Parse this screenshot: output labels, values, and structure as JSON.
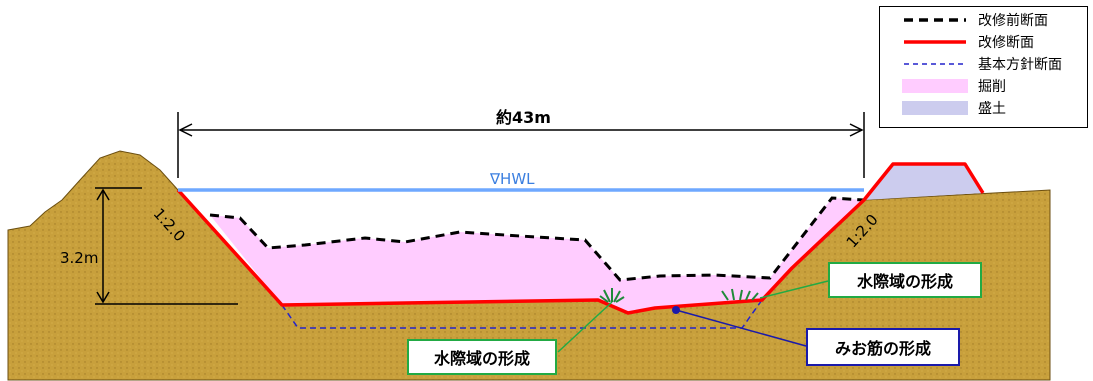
{
  "legend": {
    "items": [
      {
        "label": "改修前断面",
        "kind": "dash-black",
        "color": "#000000"
      },
      {
        "label": "改修断面",
        "kind": "solid-red",
        "color": "#ff0000"
      },
      {
        "label": "基本方針断面",
        "kind": "dash-blue",
        "color": "#0000cc"
      },
      {
        "label": "掘削",
        "kind": "fill",
        "color": "#ffccff"
      },
      {
        "label": "盛土",
        "kind": "fill",
        "color": "#ccccee"
      }
    ]
  },
  "dimensions": {
    "width_label": "約43m",
    "height_label": "3.2m",
    "hwl_label": "∇HWL"
  },
  "slopes": {
    "left": "1:2.0",
    "right": "1:2.0"
  },
  "callouts": {
    "left_wetland": "水際域の形成",
    "right_wetland": "水際域の形成",
    "low_channel": "みお筋の形成"
  },
  "colors": {
    "soil": "#c8a03c",
    "soil_shade": "#b68a2c",
    "hwl": "#6fa8ff",
    "excavation": "#ffccff",
    "embankment": "#ccccee",
    "callout_green": "#22aa44",
    "callout_blue": "#1a1aaa"
  }
}
